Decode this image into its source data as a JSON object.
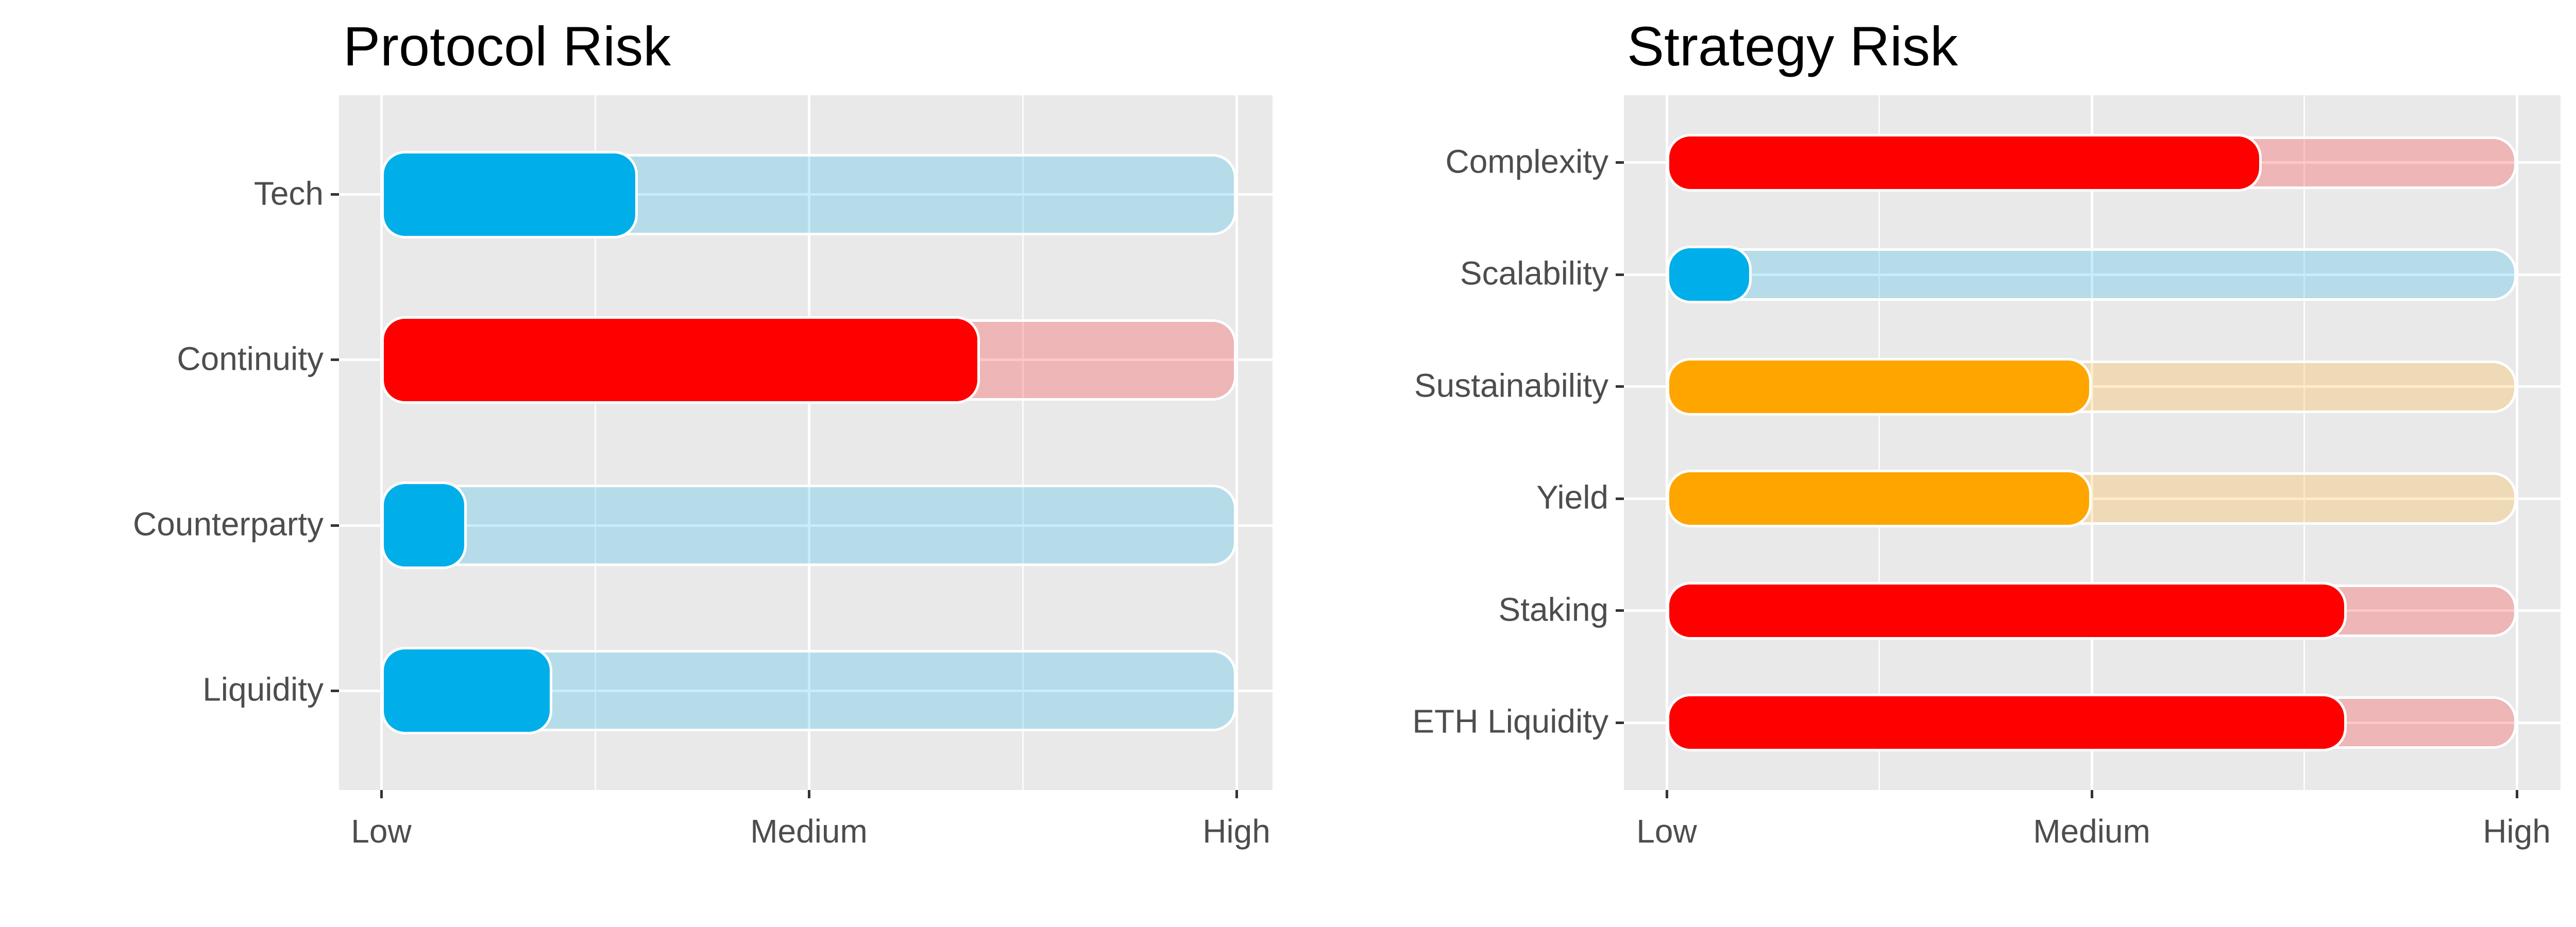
{
  "figure": {
    "background": "#FFFFFF",
    "panel_color": "#E9E9E9",
    "gridline_color": "#FFFFFF",
    "axis_text_color": "#4D4D4D",
    "tick_color": "#333333",
    "title_color": "#000000",
    "bar_outline_color": "#FFFFFF",
    "track_alpha": 0.22
  },
  "chart_data": [
    {
      "type": "bar",
      "orientation": "horizontal",
      "title": "Protocol Risk",
      "xlabel": "",
      "ylabel": "",
      "x_tick_labels": [
        "Low",
        "Medium",
        "High"
      ],
      "x_range": [
        1,
        3
      ],
      "grid": "white major gridlines at Low/Medium/High plus minor gridlines, gray panel",
      "legend": "none",
      "bar_style": "rounded solid bar from Low to value, translucent rounded track from Low to High, white outlines",
      "categories": [
        "Tech",
        "Continuity",
        "Counterparty",
        "Liquidity"
      ],
      "values": [
        1.6,
        2.4,
        1.2,
        1.4
      ],
      "value_scale": "1 = Low, 2 = Medium, 3 = High",
      "bar_colors": [
        "#00AEEA",
        "#FF0000",
        "#00AEEA",
        "#00AEEA"
      ]
    },
    {
      "type": "bar",
      "orientation": "horizontal",
      "title": "Strategy Risk",
      "xlabel": "",
      "ylabel": "",
      "x_tick_labels": [
        "Low",
        "Medium",
        "High"
      ],
      "x_range": [
        1,
        3
      ],
      "grid": "white major gridlines at Low/Medium/High plus minor gridlines, gray panel",
      "legend": "none",
      "bar_style": "rounded solid bar from Low to value, translucent rounded track from Low to High, white outlines",
      "categories": [
        "Complexity",
        "Scalability",
        "Sustainability",
        "Yield",
        "Staking",
        "ETH Liquidity"
      ],
      "values": [
        2.4,
        1.2,
        2.0,
        2.0,
        2.6,
        2.6
      ],
      "value_scale": "1 = Low, 2 = Medium, 3 = High",
      "bar_colors": [
        "#FF0000",
        "#00AEEA",
        "#FFA500",
        "#FFA500",
        "#FF0000",
        "#FF0000"
      ]
    }
  ]
}
